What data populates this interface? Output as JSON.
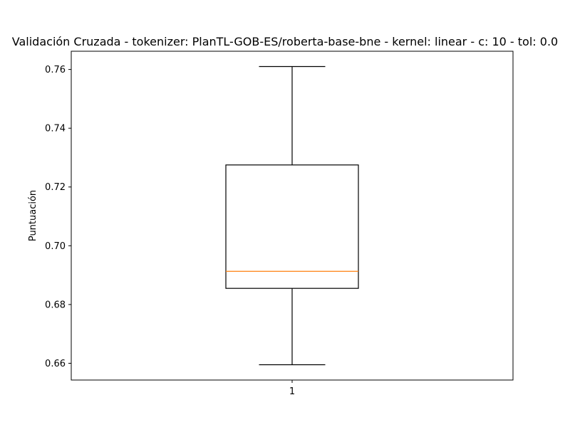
{
  "chart_data": {
    "type": "box",
    "title": "Validación Cruzada - tokenizer: PlanTL-GOB-ES/roberta-base-bne - kernel: linear - c: 10 - tol: 0.0",
    "xlabel": "",
    "ylabel": "Puntuación",
    "categories": [
      "1"
    ],
    "boxes": [
      {
        "category": "1",
        "whisker_low": 0.6595,
        "q1": 0.6855,
        "median": 0.6913,
        "q3": 0.7275,
        "whisker_high": 0.761
      }
    ],
    "ylim": [
      0.6543,
      0.7662
    ],
    "yticks": [
      0.66,
      0.68,
      0.7,
      0.72,
      0.74,
      0.76
    ],
    "ytick_labels": [
      "0.66",
      "0.68",
      "0.70",
      "0.72",
      "0.74",
      "0.76"
    ],
    "grid": false,
    "colors": {
      "box": "#000000",
      "median": "#ff7f0e",
      "whisker": "#000000"
    }
  }
}
